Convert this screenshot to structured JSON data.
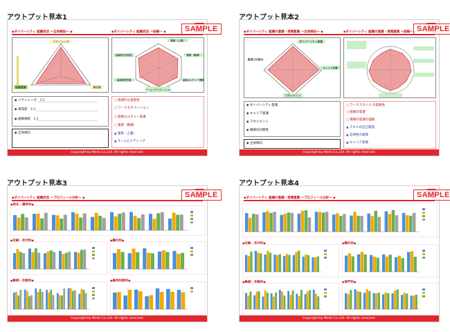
{
  "panels": [
    {
      "title": "アウトプット見本1",
      "sample": "SAMPLE",
      "footer": "Copyright by Weds Co.,Ltd. All rights reserved.",
      "left_section": "◆ダイバーシティ 組織状況 〜全体傾向〜 ◆",
      "right_section": "◆ダイバーシティ 組織状況 〜詳細〜 ◆",
      "left_radar_labels": [
        "バランシング",
        "達成度",
        "組織貢献"
      ],
      "right_radar_labels": [
        "業務（上層）",
        "業務（職場）",
        "組織カルチャー理解",
        "チーム ヤクリエーション",
        "組織環境意識",
        "組織的な意欲性"
      ],
      "summary_items": [
        "◆ バランシング　3.1",
        "◆ 達成度　3.3",
        "◆ 組織貢献　3.1"
      ],
      "note_label": "◆ 全体傾向",
      "right_list": [
        "◻ 目標的な意欲性",
        "◻ ワークモチベーション",
        "◻ 組織カルチャー意識",
        "◻ 業務（職場）",
        "▲ 業務（上層）",
        "▲ チームビルディング"
      ]
    },
    {
      "title": "アウトプット見本2",
      "sample": "SAMPLE",
      "footer": "Copyright by Weds Co.,Ltd. All rights reserved.",
      "left_section": "◆ダイバーシティ 組織の意識・現場意識 〜全体傾向〜 ◆",
      "right_section": "◆ダイバーシティ 組織の意識・現場意識 〜詳細〜 ◆",
      "left_radar_labels": [
        "ダイバーシティ意識",
        "キャリア意識",
        "マネジメント",
        "職場の同僚性"
      ],
      "summary_items": [
        "◆ ダイバーシティ意識",
        "◆ キャリア意識",
        "◆ マネジメント",
        "◆ 職場の同僚性"
      ],
      "note_label": "◆ 全体傾向",
      "right_list": [
        "◻ ワークスタイル の柔軟性",
        "◻ 組織の意識",
        "◻ 職場の意識の理解",
        "▲ スキルの自己開発",
        "▲ 自律性の発揮",
        "▲ キャリア意識"
      ]
    },
    {
      "title": "アウトプット見本3",
      "sample": "SAMPLE",
      "footer": "Copyright by Weds Co.,Ltd. All rights reserved.",
      "section": "◆ダイバーシティ 組織状況 〜プロフィール分析〜 ◆",
      "sub_sections": [
        "◆男女・属性別◆",
        "◆年齢・年代別◆",
        "◆職位別◆",
        "◆雇用形態別◆",
        "◆勤続・年数別◆"
      ]
    },
    {
      "title": "アウトプット見本4",
      "sample": "SAMPLE",
      "footer": "Copyright by Weds Co.,Ltd. All rights reserved.",
      "section": "◆ダイバーシティ 組織の意識・現場意識 〜プロフィール分析〜 ◆",
      "sub_sections": [
        "◆年齢・年代別◆",
        "◆職位別◆",
        "◆勤続・年数別◆",
        "◆部門別◆"
      ]
    }
  ]
}
